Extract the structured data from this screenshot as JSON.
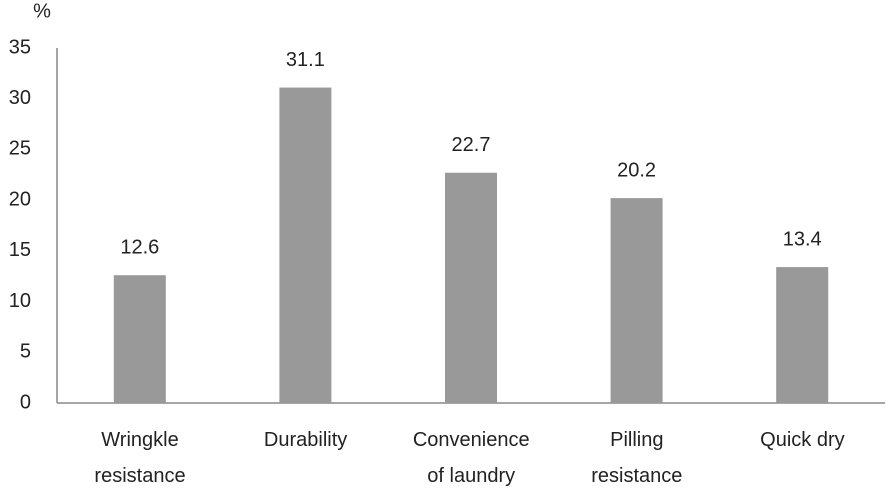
{
  "chart_data": {
    "type": "bar",
    "y_label": "%",
    "categories": [
      "Wringkle\nresistance",
      "Durability",
      "Convenience\nof laundry",
      "Pilling\nresistance",
      "Quick dry"
    ],
    "values": [
      12.6,
      31.1,
      22.7,
      20.2,
      13.4
    ],
    "color": "#999999",
    "ylim": [
      0,
      35
    ],
    "yticks": [
      0,
      5,
      10,
      15,
      20,
      25,
      30,
      35
    ],
    "grid": false
  }
}
